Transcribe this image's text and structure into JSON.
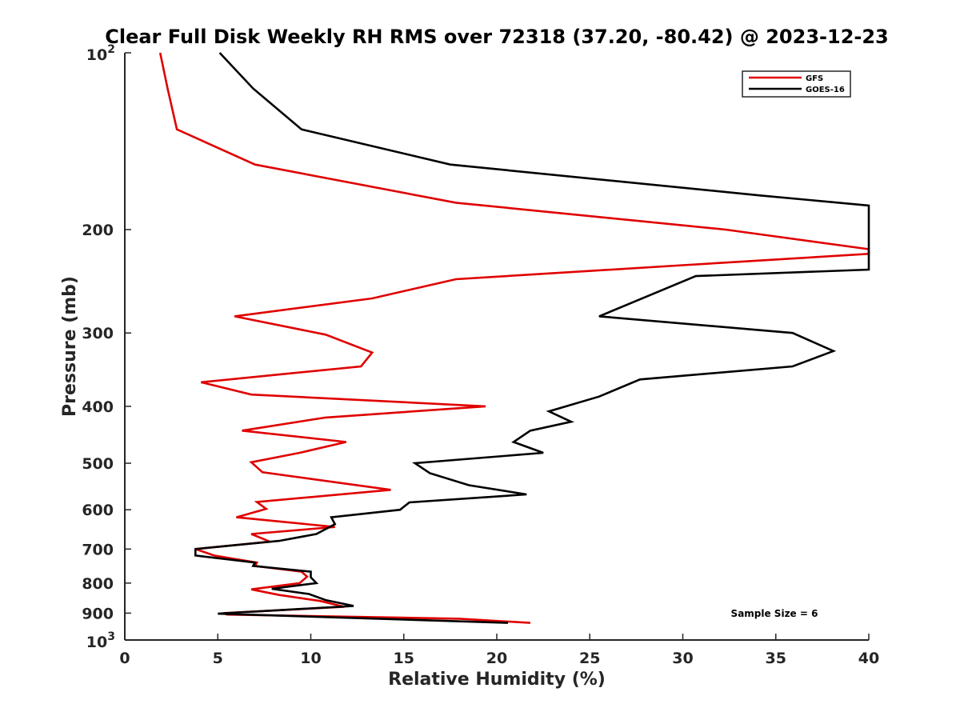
{
  "chart_data": {
    "type": "line",
    "title": "Clear Full Disk Weekly RH RMS over 72318 (37.20, -80.42) @ 2023-12-23",
    "xlabel": "Relative Humidity (%)",
    "ylabel": "Pressure (mb)",
    "xlim": [
      0,
      40
    ],
    "ylim": [
      100,
      1000
    ],
    "y_scale": "log",
    "y_reversed": true,
    "x_ticks": [
      "0",
      "5",
      "10",
      "15",
      "20",
      "25",
      "30",
      "35",
      "40"
    ],
    "y_ticks": [
      {
        "value": 100,
        "base": "10",
        "exp": "2"
      },
      {
        "value": 200,
        "label": "200"
      },
      {
        "value": 300,
        "label": "300"
      },
      {
        "value": 400,
        "label": "400"
      },
      {
        "value": 500,
        "label": "500"
      },
      {
        "value": 600,
        "label": "600"
      },
      {
        "value": 700,
        "label": "700"
      },
      {
        "value": 800,
        "label": "800"
      },
      {
        "value": 900,
        "label": "900"
      },
      {
        "value": 1000,
        "base": "10",
        "exp": "3"
      }
    ],
    "legend_position": "top-right",
    "grid": false,
    "annotation": "Sample Size = 6",
    "series": [
      {
        "name": "GFS",
        "color": "#e00000",
        "points": [
          [
            1.9,
            100
          ],
          [
            2.3,
            115
          ],
          [
            2.8,
            135
          ],
          [
            7.0,
            155
          ],
          [
            17.8,
            180
          ],
          [
            32.3,
            200
          ],
          [
            40.0,
            216
          ],
          [
            40.0,
            220
          ],
          [
            30.0,
            230
          ],
          [
            17.8,
            243
          ],
          [
            13.3,
            262
          ],
          [
            5.9,
            281
          ],
          [
            10.8,
            302
          ],
          [
            13.3,
            324
          ],
          [
            12.7,
            342
          ],
          [
            4.1,
            364
          ],
          [
            6.8,
            382
          ],
          [
            19.4,
            400
          ],
          [
            10.8,
            418
          ],
          [
            6.3,
            440
          ],
          [
            11.9,
            460
          ],
          [
            9.4,
            480
          ],
          [
            6.8,
            498
          ],
          [
            7.4,
            518
          ],
          [
            14.3,
            555
          ],
          [
            7.1,
            582
          ],
          [
            7.6,
            598
          ],
          [
            6.0,
            618
          ],
          [
            11.3,
            642
          ],
          [
            6.8,
            660
          ],
          [
            7.8,
            680
          ],
          [
            3.8,
            700
          ],
          [
            4.8,
            718
          ],
          [
            7.1,
            738
          ],
          [
            7.0,
            748
          ],
          [
            9.5,
            765
          ],
          [
            9.8,
            780
          ],
          [
            9.4,
            800
          ],
          [
            6.8,
            820
          ],
          [
            8.3,
            838
          ],
          [
            10.5,
            858
          ],
          [
            11.8,
            878
          ],
          [
            5.3,
            900
          ],
          [
            5.5,
            905
          ],
          [
            18.0,
            920
          ],
          [
            21.8,
            935
          ]
        ]
      },
      {
        "name": "GOES-16",
        "color": "#000000",
        "points": [
          [
            5.1,
            100
          ],
          [
            6.9,
            115
          ],
          [
            9.5,
            135
          ],
          [
            17.5,
            155
          ],
          [
            34.2,
            175
          ],
          [
            40.0,
            182
          ],
          [
            40.0,
            234
          ],
          [
            30.7,
            240
          ],
          [
            25.5,
            281
          ],
          [
            35.9,
            300
          ],
          [
            38.1,
            322
          ],
          [
            35.9,
            342
          ],
          [
            27.7,
            360
          ],
          [
            25.5,
            385
          ],
          [
            22.8,
            408
          ],
          [
            24.0,
            425
          ],
          [
            21.8,
            440
          ],
          [
            20.9,
            460
          ],
          [
            22.5,
            480
          ],
          [
            15.6,
            500
          ],
          [
            16.4,
            520
          ],
          [
            18.5,
            545
          ],
          [
            21.6,
            565
          ],
          [
            15.3,
            583
          ],
          [
            14.8,
            600
          ],
          [
            11.1,
            618
          ],
          [
            11.3,
            635
          ],
          [
            10.3,
            660
          ],
          [
            8.3,
            678
          ],
          [
            3.8,
            700
          ],
          [
            3.8,
            718
          ],
          [
            7.0,
            738
          ],
          [
            6.9,
            748
          ],
          [
            10.0,
            765
          ],
          [
            10.0,
            782
          ],
          [
            10.3,
            800
          ],
          [
            7.9,
            818
          ],
          [
            9.9,
            835
          ],
          [
            10.8,
            855
          ],
          [
            12.3,
            875
          ],
          [
            5.0,
            902
          ],
          [
            20.6,
            935
          ]
        ]
      }
    ]
  }
}
